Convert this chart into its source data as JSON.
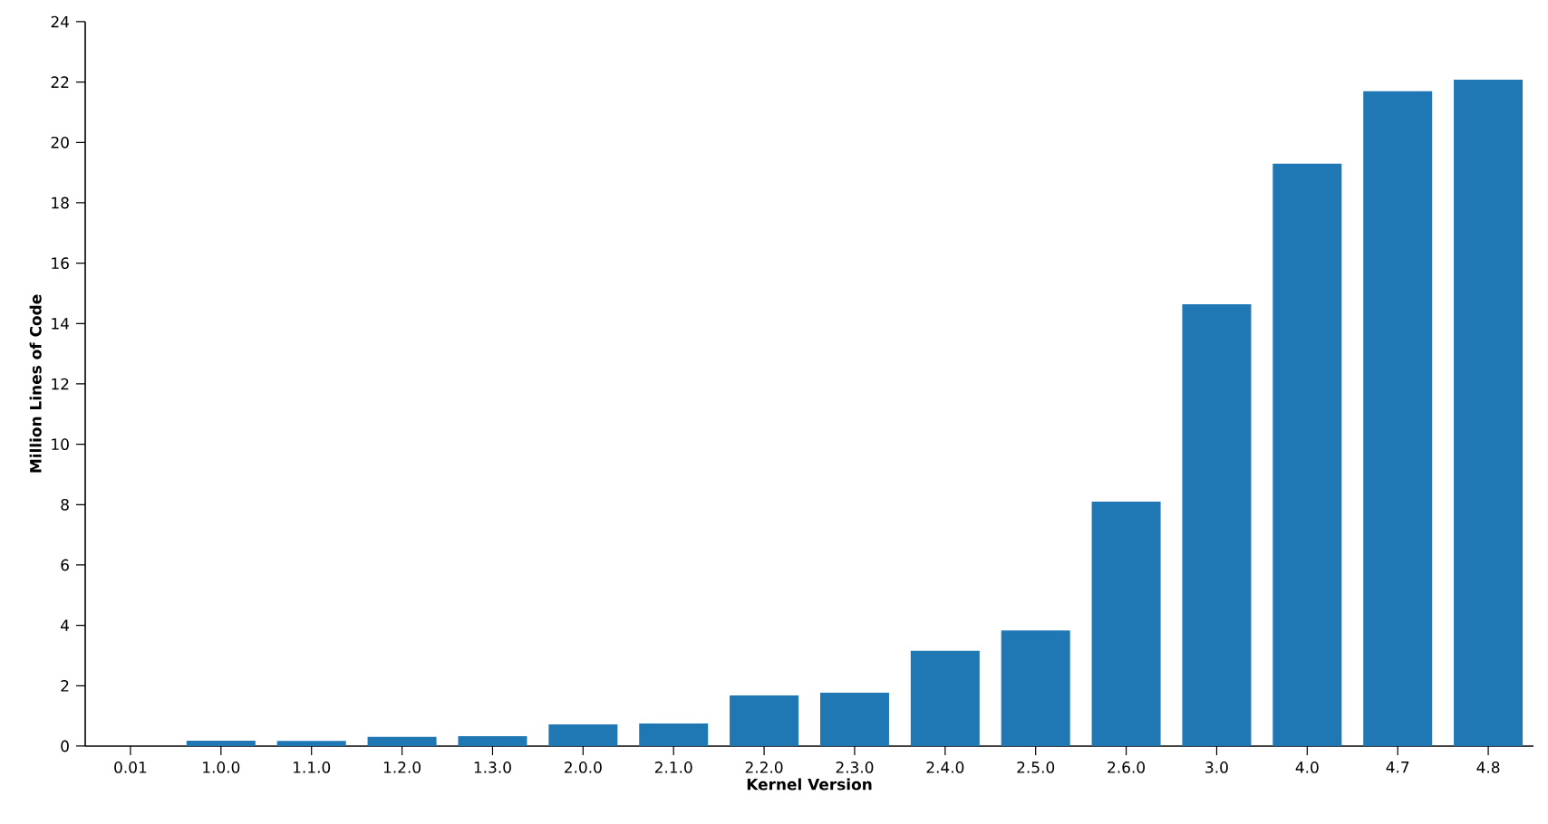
{
  "chart_data": {
    "type": "bar",
    "xlabel": "Kernel Version",
    "ylabel": "Million Lines of Code",
    "categories": [
      "0.01",
      "1.0.0",
      "1.1.0",
      "1.2.0",
      "1.3.0",
      "2.0.0",
      "2.1.0",
      "2.2.0",
      "2.3.0",
      "2.4.0",
      "2.5.0",
      "2.6.0",
      "3.0",
      "4.0",
      "4.7",
      "4.8"
    ],
    "values": [
      null,
      0.18,
      0.17,
      0.31,
      0.33,
      0.72,
      0.75,
      1.68,
      1.77,
      3.16,
      3.83,
      8.1,
      14.64,
      19.3,
      21.7,
      22.08
    ],
    "color": "#1f77b4",
    "ylim": [
      0,
      24
    ],
    "yticks": [
      0,
      2,
      4,
      6,
      8,
      10,
      12,
      14,
      16,
      18,
      20,
      22,
      24
    ],
    "grid": false
  }
}
